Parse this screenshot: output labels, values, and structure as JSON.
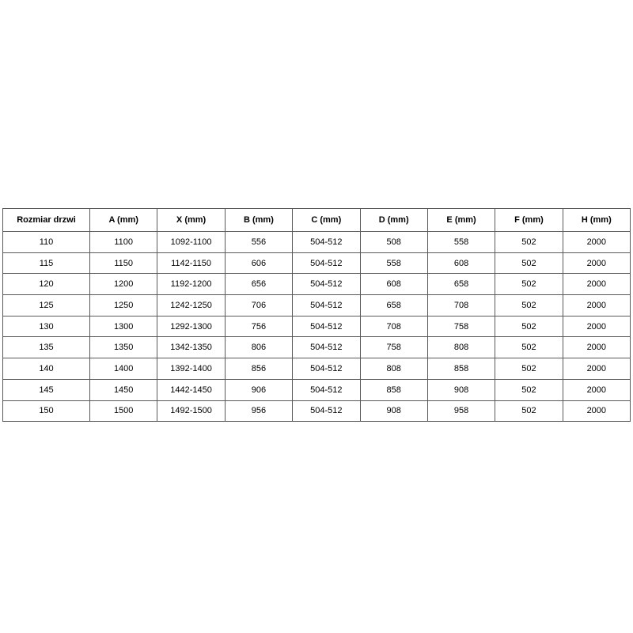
{
  "table": {
    "name": "door-size-specification-table",
    "columns": [
      "Rozmiar drzwi",
      "A (mm)",
      "X (mm)",
      "B (mm)",
      "C (mm)",
      "D (mm)",
      "E (mm)",
      "F (mm)",
      "H (mm)"
    ],
    "rows": [
      [
        "110",
        "1100",
        "1092-1100",
        "556",
        "504-512",
        "508",
        "558",
        "502",
        "2000"
      ],
      [
        "115",
        "1150",
        "1142-1150",
        "606",
        "504-512",
        "558",
        "608",
        "502",
        "2000"
      ],
      [
        "120",
        "1200",
        "1192-1200",
        "656",
        "504-512",
        "608",
        "658",
        "502",
        "2000"
      ],
      [
        "125",
        "1250",
        "1242-1250",
        "706",
        "504-512",
        "658",
        "708",
        "502",
        "2000"
      ],
      [
        "130",
        "1300",
        "1292-1300",
        "756",
        "504-512",
        "708",
        "758",
        "502",
        "2000"
      ],
      [
        "135",
        "1350",
        "1342-1350",
        "806",
        "504-512",
        "758",
        "808",
        "502",
        "2000"
      ],
      [
        "140",
        "1400",
        "1392-1400",
        "856",
        "504-512",
        "808",
        "858",
        "502",
        "2000"
      ],
      [
        "145",
        "1450",
        "1442-1450",
        "906",
        "504-512",
        "858",
        "908",
        "502",
        "2000"
      ],
      [
        "150",
        "1500",
        "1492-1500",
        "956",
        "504-512",
        "908",
        "958",
        "502",
        "2000"
      ]
    ]
  },
  "colors": {
    "background": "#ffffff",
    "border": "#595959",
    "text": "#000000"
  }
}
